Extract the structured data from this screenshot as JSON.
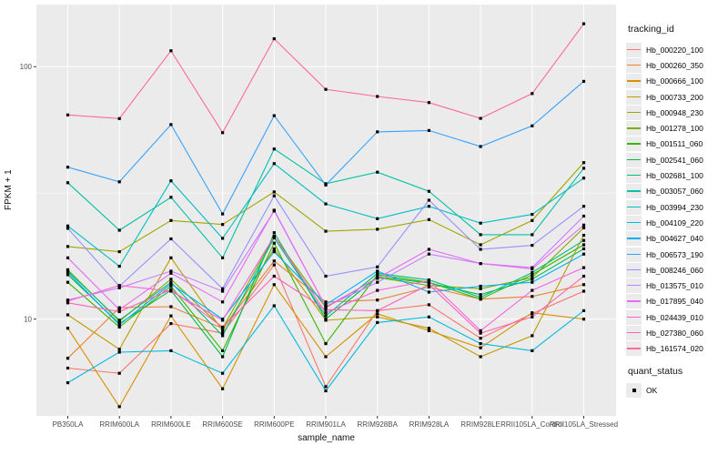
{
  "chart_data": {
    "type": "line",
    "title": "",
    "xlabel": "sample_name",
    "ylabel": "FPKM + 1",
    "y_scale": "log10",
    "ylim_px_note": "log axis, decade spans 277.4px, y(10)=350.7",
    "y_ticks": [
      {
        "label": "100",
        "value": 100
      },
      {
        "label": "10",
        "value": 10
      }
    ],
    "y_minor_ticks": [
      31.6
    ],
    "grid": true,
    "panel_bg": "#EBEBEB",
    "grid_color": "#FFFFFF",
    "marker": "black-square",
    "legend_position": "right",
    "categories": [
      "PB350LA",
      "RRIM600LA",
      "RRIM600LE",
      "RRIM600SE",
      "RRIM600PE",
      "RRIM901LA",
      "RRIM928BA",
      "RRIM928LA",
      "RRIM928LE",
      "RRII105LA_Control",
      "RRII105LA_Stressed"
    ],
    "legend": {
      "title": "tracking_id"
    },
    "quant_legend": {
      "title": "quant_status",
      "items": [
        {
          "label": "OK",
          "marker": "black-square"
        }
      ]
    },
    "series": [
      {
        "name": "Hb_000220_100",
        "color": "#F8766D",
        "values": [
          6.4,
          6.1,
          9.6,
          8.8,
          16.4,
          5.4,
          10.8,
          11.4,
          8.4,
          10.5,
          12.9
        ]
      },
      {
        "name": "Hb_000260_350",
        "color": "#EA8331",
        "values": [
          7.0,
          11.1,
          11.2,
          9.2,
          17.0,
          11.7,
          11.9,
          13.4,
          12.0,
          12.3,
          13.7
        ]
      },
      {
        "name": "Hb_000666_100",
        "color": "#D89000",
        "values": [
          9.2,
          4.5,
          10.3,
          5.3,
          13.7,
          7.1,
          10.5,
          9.0,
          7.7,
          10.6,
          10.0
        ]
      },
      {
        "name": "Hb_000733_200",
        "color": "#C09B00",
        "values": [
          10.4,
          7.6,
          17.5,
          9.0,
          19.0,
          9.9,
          10.2,
          9.2,
          7.1,
          8.6,
          21.5
        ]
      },
      {
        "name": "Hb_000948_230",
        "color": "#A3A500",
        "values": [
          19.4,
          18.5,
          24.6,
          23.7,
          31.9,
          22.3,
          22.7,
          24.8,
          19.7,
          24.6,
          41.7
        ]
      },
      {
        "name": "Hb_001278_100",
        "color": "#7CAE00",
        "values": [
          15.7,
          9.8,
          14.4,
          9.2,
          21.2,
          11.1,
          14.6,
          13.6,
          13.2,
          14.6,
          23.0
        ]
      },
      {
        "name": "Hb_001511_060",
        "color": "#39B600",
        "values": [
          14.0,
          9.3,
          13.5,
          7.5,
          20.0,
          8.0,
          15.0,
          14.0,
          12.0,
          15.0,
          19.7
        ]
      },
      {
        "name": "Hb_002541_060",
        "color": "#00BB4E",
        "values": [
          15.0,
          9.6,
          13.0,
          7.1,
          22.0,
          10.0,
          14.7,
          13.9,
          12.5,
          14.4,
          19.0
        ]
      },
      {
        "name": "Hb_002681_100",
        "color": "#00BF7D",
        "values": [
          15.5,
          9.9,
          14.0,
          8.6,
          21.0,
          10.3,
          15.2,
          14.3,
          12.2,
          15.3,
          20.5
        ]
      },
      {
        "name": "Hb_003057_060",
        "color": "#00C1A3",
        "values": [
          34.7,
          22.5,
          30.4,
          17.5,
          47.2,
          34.4,
          38.2,
          32.1,
          21.6,
          21.6,
          39.6
        ]
      },
      {
        "name": "Hb_003994_230",
        "color": "#00BFC4",
        "values": [
          23.4,
          16.2,
          35.3,
          20.9,
          41.3,
          28.6,
          25.0,
          28.0,
          24.0,
          26.0,
          36.2
        ]
      },
      {
        "name": "Hb_004109_220",
        "color": "#00BAE0",
        "values": [
          5.6,
          7.4,
          7.5,
          6.1,
          11.3,
          5.2,
          9.7,
          10.2,
          8.0,
          7.5,
          10.8
        ]
      },
      {
        "name": "Hb_004627_040",
        "color": "#00B0F6",
        "values": [
          15.3,
          9.5,
          13.8,
          10.0,
          18.5,
          11.4,
          15.5,
          12.8,
          13.5,
          14.0,
          18.1
        ]
      },
      {
        "name": "Hb_006573_190",
        "color": "#35A2FF",
        "values": [
          40.0,
          35.0,
          59.0,
          26.1,
          64.0,
          34.0,
          55.2,
          55.9,
          48.3,
          58.3,
          87.5
        ]
      },
      {
        "name": "Hb_008246_060",
        "color": "#9590FF",
        "values": [
          22.9,
          13.5,
          20.8,
          13.2,
          30.8,
          14.8,
          16.1,
          29.6,
          18.9,
          19.6,
          28.0
        ]
      },
      {
        "name": "Hb_013575_010",
        "color": "#C77CFF",
        "values": [
          11.9,
          13.3,
          15.5,
          12.9,
          26.8,
          11.2,
          14.0,
          18.1,
          16.6,
          16.0,
          25.6
        ]
      },
      {
        "name": "Hb_017895_040",
        "color": "#E76BF3",
        "values": [
          17.5,
          10.9,
          15.2,
          11.7,
          27.0,
          11.2,
          14.5,
          18.9,
          16.6,
          15.8,
          23.6
        ]
      },
      {
        "name": "Hb_024439_010",
        "color": "#FA62DB",
        "values": [
          11.8,
          13.6,
          12.9,
          9.9,
          21.3,
          10.6,
          13.0,
          14.2,
          9.0,
          13.0,
          16.0
        ]
      },
      {
        "name": "Hb_027380_060",
        "color": "#FF62BC",
        "values": [
          11.6,
          10.7,
          13.1,
          9.3,
          14.8,
          10.9,
          10.8,
          13.7,
          8.8,
          10.2,
          14.8
        ]
      },
      {
        "name": "Hb_161574_020",
        "color": "#FF6A98",
        "values": [
          64.4,
          62.3,
          115.6,
          54.8,
          129.0,
          81.3,
          76.2,
          72.1,
          62.4,
          78.3,
          148.0
        ]
      }
    ]
  }
}
